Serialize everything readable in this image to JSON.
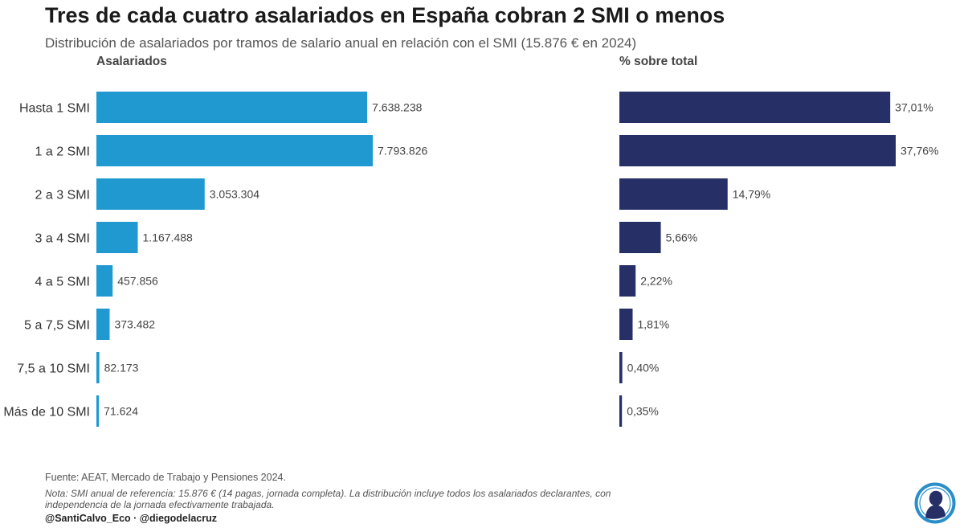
{
  "header": {
    "title": "Tres de cada cuatro asalariados en España cobran 2 SMI o menos",
    "subtitle": "Distribución de asalariados por tramos de salario anual en relación con el SMI (15.876 € en 2024)"
  },
  "colors": {
    "asalariados_bar": "#1f99d0",
    "porcentaje_bar": "#262f66",
    "logo_ring": "#2a8ec9",
    "logo_figure": "#262f66"
  },
  "chart_data": [
    {
      "type": "bar",
      "orientation": "horizontal",
      "panel_title": "Asalariados",
      "categories": [
        "Hasta 1 SMI",
        "1 a 2 SMI",
        "2 a 3 SMI",
        "3 a 4 SMI",
        "4 a 5 SMI",
        "5 a 7,5 SMI",
        "7,5 a 10 SMI",
        "Más de 10 SMI"
      ],
      "values": [
        7638238,
        7793826,
        3053304,
        1167488,
        457856,
        373482,
        82173,
        71624
      ],
      "value_labels": [
        "7.638.238",
        "7.793.826",
        "3.053.304",
        "1.167.488",
        "457.856",
        "373.482",
        "82.173",
        "71.624"
      ],
      "xlim": [
        0,
        7793826
      ],
      "grid": false
    },
    {
      "type": "bar",
      "orientation": "horizontal",
      "panel_title": "% sobre total",
      "categories": [
        "Hasta 1 SMI",
        "1 a 2 SMI",
        "2 a 3 SMI",
        "3 a 4 SMI",
        "4 a 5 SMI",
        "5 a 7,5 SMI",
        "7,5 a 10 SMI",
        "Más de 10 SMI"
      ],
      "values": [
        37.01,
        37.76,
        14.79,
        5.66,
        2.22,
        1.81,
        0.4,
        0.35
      ],
      "value_labels": [
        "37,01%",
        "37,76%",
        "14,79%",
        "5,66%",
        "2,22%",
        "1,81%",
        "0,40%",
        "0,35%"
      ],
      "xlim": [
        0,
        37.76
      ],
      "grid": false
    }
  ],
  "footer": {
    "source": "Fuente: AEAT, Mercado de Trabajo y Pensiones 2024.",
    "note": "Nota: SMI anual de referencia: 15.876 € (14 pagas, jornada completa). La distribución incluye todos los asalariados declarantes, con independencia de la jornada efectivamente trabajada.",
    "credits": "@SantiCalvo_Eco · @diegodelacruz"
  },
  "logo": {
    "icon": "person-silhouette-logo-icon"
  }
}
